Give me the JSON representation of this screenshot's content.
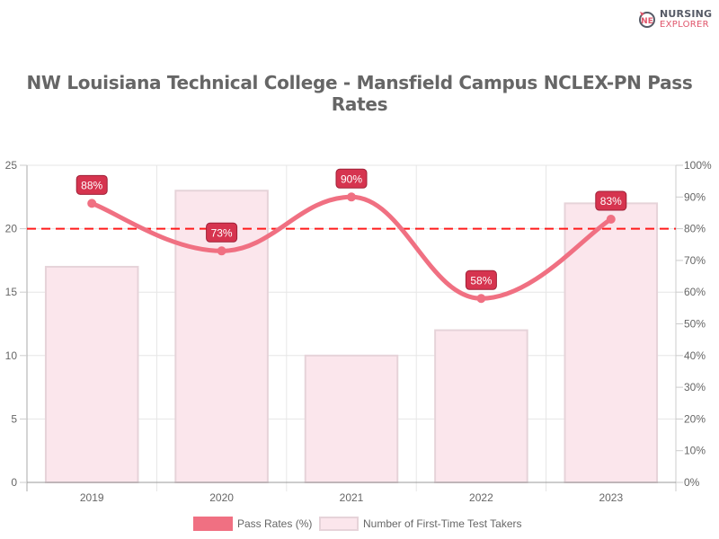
{
  "logo": {
    "line1": "NURSING",
    "line2": "EXPLORER",
    "mark_letters": "NE",
    "colors": {
      "dark": "#555a66",
      "accent": "#e0566c"
    }
  },
  "title": "NW Louisiana Technical College - Mansfield Campus NCLEX-PN Pass Rates",
  "legend": {
    "pass_rates_label": "Pass Rates (%)",
    "test_takers_label": "Number of First-Time Test Takers"
  },
  "colors": {
    "line": "#f07082",
    "bar_fill": "#fbe6ec",
    "bar_border": "#e6d3d9",
    "label_bg": "#d6344f",
    "label_border": "#9e2037",
    "threshold": "#ff1a1a",
    "grid": "#e6e6e6",
    "axis_text": "#666666"
  },
  "chart_data": {
    "type": "bar+line",
    "title": "NW Louisiana Technical College - Mansfield Campus NCLEX-PN Pass Rates",
    "categories": [
      "2019",
      "2020",
      "2021",
      "2022",
      "2023"
    ],
    "series": [
      {
        "name": "Number of First-Time Test Takers",
        "type": "bar",
        "axis": "left",
        "values": [
          17,
          23,
          10,
          12,
          22
        ]
      },
      {
        "name": "Pass Rates (%)",
        "type": "line",
        "axis": "right",
        "values": [
          88,
          73,
          90,
          58,
          83
        ],
        "data_labels": [
          "88%",
          "73%",
          "90%",
          "58%",
          "83%"
        ]
      }
    ],
    "threshold": {
      "value": 80,
      "axis": "right",
      "style": "dashed",
      "color": "#ff1a1a"
    },
    "left_axis": {
      "min": 0,
      "max": 25,
      "ticks": [
        "0",
        "5",
        "10",
        "15",
        "20",
        "25"
      ]
    },
    "right_axis": {
      "min": 0,
      "max": 100,
      "ticks": [
        "0%",
        "10%",
        "20%",
        "30%",
        "40%",
        "50%",
        "60%",
        "70%",
        "80%",
        "90%",
        "100%"
      ]
    },
    "xlabel": "",
    "ylabel": "",
    "grid": true,
    "legend_position": "bottom"
  }
}
